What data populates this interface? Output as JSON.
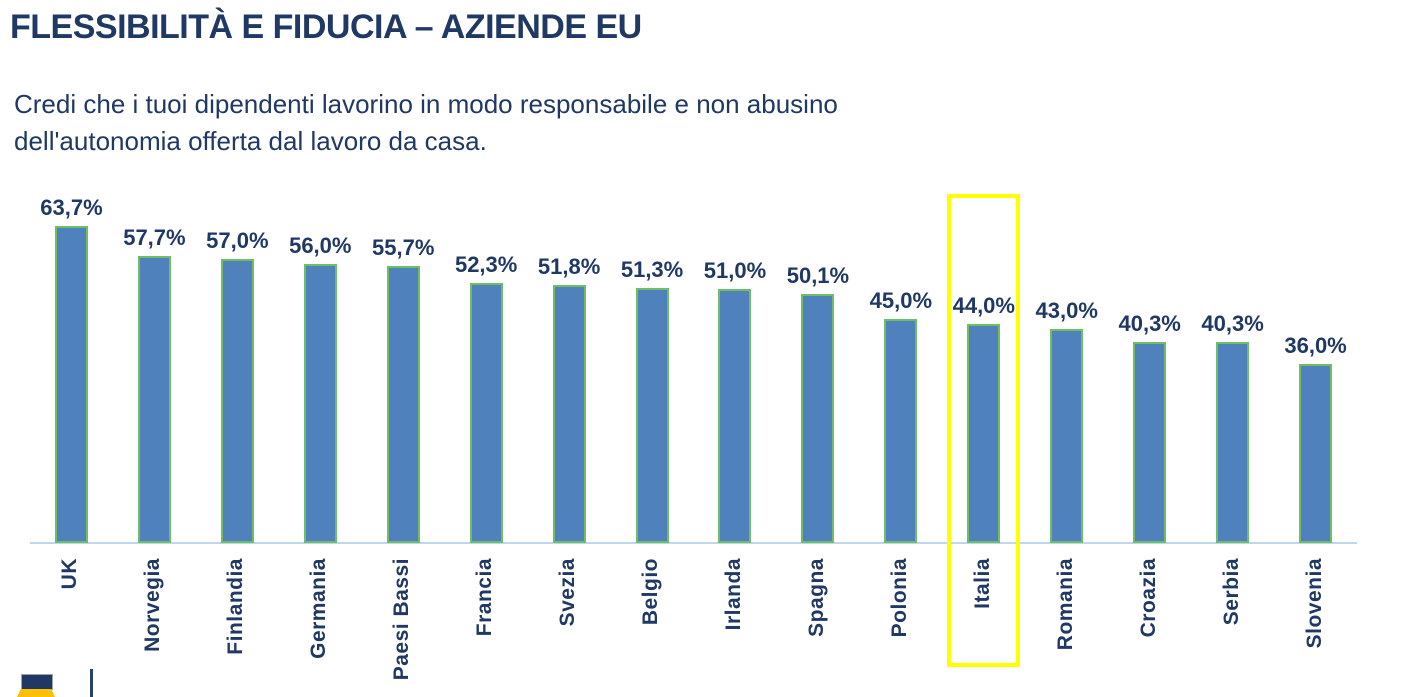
{
  "slide": {
    "title": "FLESSIBILITÀ E FIDUCIA – AZIENDE EU",
    "subtitle": "Credi che i tuoi dipendenti lavorino in modo responsabile e non abusino\ndell'autonomia offerta dal lavoro da casa."
  },
  "chart_data": {
    "type": "bar",
    "title": "FLESSIBILITÀ E FIDUCIA – AZIENDE EU",
    "subtitle": "Credi che i tuoi dipendenti lavorino in modo responsabile e non abusino dell'autonomia offerta dal lavoro da casa.",
    "categories": [
      "UK",
      "Norvegia",
      "Finlandia",
      "Germania",
      "Paesi Bassi",
      "Francia",
      "Svezia",
      "Belgio",
      "Irlanda",
      "Spagna",
      "Polonia",
      "Italia",
      "Romania",
      "Croazia",
      "Serbia",
      "Slovenia"
    ],
    "values": [
      63.7,
      57.7,
      57.0,
      56.0,
      55.7,
      52.3,
      51.8,
      51.3,
      51.0,
      50.1,
      45.0,
      44.0,
      43.0,
      40.3,
      40.3,
      36.0
    ],
    "value_labels": [
      "63,7%",
      "57,7%",
      "57,0%",
      "56,0%",
      "55,7%",
      "52,3%",
      "51,8%",
      "51,3%",
      "51,0%",
      "50,1%",
      "45,0%",
      "44,0%",
      "43,0%",
      "40,3%",
      "40,3%",
      "36,0%"
    ],
    "highlighted_category": "Italia",
    "xlabel": "",
    "ylabel": "",
    "ylim": [
      0,
      70
    ],
    "grid": false,
    "legend": "none",
    "category_label_rotation": -90,
    "value_label_format": "percent-comma-1dp"
  },
  "colors": {
    "navy": "#1F3864",
    "bar_fill": "#4F81BD",
    "bar_border": "#6FBE63",
    "axis_line": "#BDD7EE",
    "highlight": "#FFFF00",
    "gold": "#FFC000"
  }
}
